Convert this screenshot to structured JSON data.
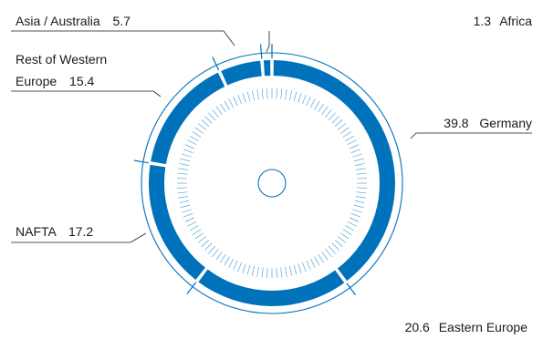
{
  "chart_data": {
    "type": "pie",
    "variant": "donut",
    "start_angle_deg": 0,
    "direction": "clockwise",
    "order": [
      "Germany",
      "Eastern Europe",
      "NAFTA",
      "Rest of Western Europe",
      "Asia/Australia",
      "Africa"
    ],
    "slices": [
      {
        "label": "Germany",
        "value": 39.8
      },
      {
        "label": "Eastern Europe",
        "value": 20.6
      },
      {
        "label": "NAFTA",
        "value": 17.2
      },
      {
        "label": "Rest of Western Europe",
        "value": 15.4
      },
      {
        "label": "Asia/Australia",
        "value": 5.7
      },
      {
        "label": "Africa",
        "value": 1.3
      }
    ],
    "colors": {
      "segment": "#0072bc",
      "outline": "#0072bc",
      "text": "#1a1a1a"
    }
  },
  "labels": {
    "germany": {
      "value": "39.8",
      "name": "Germany"
    },
    "eastern_europe": {
      "value": "20.6",
      "name": "Eastern Europe"
    },
    "nafta": {
      "name": "NAFTA",
      "value": "17.2"
    },
    "rest_western": {
      "name_line1": "Rest of Western",
      "name_line2": "Europe",
      "value": "15.4"
    },
    "asia": {
      "name": "Asia / Australia",
      "value": "5.7"
    },
    "africa": {
      "value": "1.3",
      "name": "Africa"
    }
  }
}
